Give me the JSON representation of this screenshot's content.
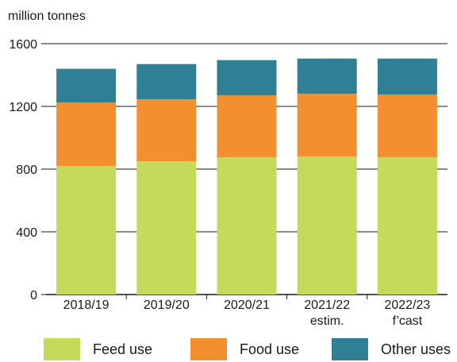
{
  "chart_data": {
    "type": "bar",
    "stacked": true,
    "unit_label": "million tonnes",
    "categories": [
      "2018/19",
      "2019/20",
      "2020/21",
      "2021/22",
      "2022/23"
    ],
    "category_sublabels": [
      "",
      "",
      "",
      "estim.",
      "f’cast"
    ],
    "ylim": [
      0,
      1600
    ],
    "yticks": [
      0,
      400,
      800,
      1200,
      1600
    ],
    "grid": "horizontal",
    "legend_position": "bottom",
    "series": [
      {
        "name": "Feed use",
        "color": "#c5d95a",
        "values": [
          820,
          850,
          875,
          880,
          875
        ]
      },
      {
        "name": "Food use",
        "color": "#f28f2e",
        "values": [
          405,
          395,
          395,
          400,
          400
        ]
      },
      {
        "name": "Other uses",
        "color": "#2f7f95",
        "values": [
          215,
          225,
          225,
          225,
          230
        ]
      }
    ]
  }
}
